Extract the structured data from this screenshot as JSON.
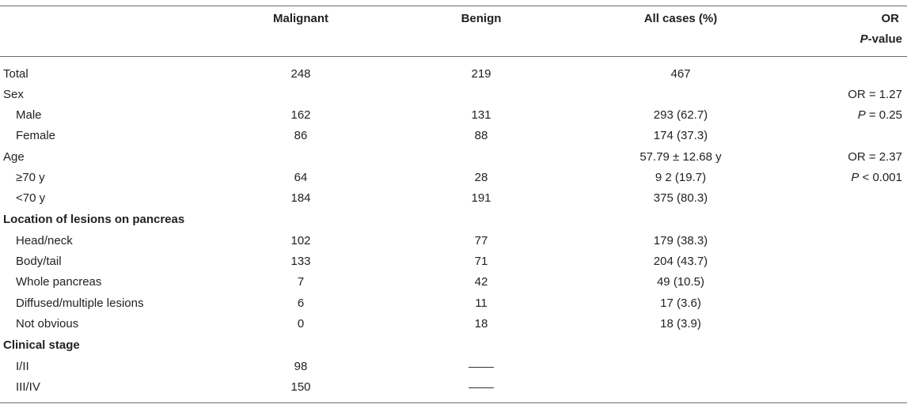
{
  "header": {
    "col_malignant": "Malignant",
    "col_benign": "Benign",
    "col_all": "All cases (%)",
    "col_or": "OR",
    "col_p_italic": "P",
    "col_p_rest": "-value"
  },
  "rows": {
    "total": {
      "label": "Total",
      "malignant": "248",
      "benign": "219",
      "all": "467",
      "or": ""
    },
    "sex": {
      "label": "Sex",
      "malignant": "",
      "benign": "",
      "all": "",
      "or": "OR = 1.27"
    },
    "male": {
      "label": "Male",
      "malignant": "162",
      "benign": "131",
      "all": "293 (62.7)",
      "or_p": "P",
      "or_rest": " = 0.25"
    },
    "female": {
      "label": "Female",
      "malignant": "86",
      "benign": "88",
      "all": "174 (37.3)",
      "or": ""
    },
    "age": {
      "label": "Age",
      "malignant": "",
      "benign": "",
      "all": "57.79 ± 12.68 y",
      "or": "OR = 2.37"
    },
    "age_ge70": {
      "label": "≥70 y",
      "malignant": "64",
      "benign": "28",
      "all": "9 2 (19.7)",
      "or_p": "P",
      "or_rest": " < 0.001"
    },
    "age_lt70": {
      "label": "<70 y",
      "malignant": "184",
      "benign": "191",
      "all": "375 (80.3)",
      "or": ""
    },
    "location": {
      "label": "Location of lesions on pancreas"
    },
    "head_neck": {
      "label": "Head/neck",
      "malignant": "102",
      "benign": "77",
      "all": "179 (38.3)"
    },
    "body_tail": {
      "label": "Body/tail",
      "malignant": "133",
      "benign": "71",
      "all": "204 (43.7)"
    },
    "whole": {
      "label": "Whole pancreas",
      "malignant": "7",
      "benign": "42",
      "all": "49 (10.5)"
    },
    "diffused": {
      "label": "Diffused/multiple lesions",
      "malignant": "6",
      "benign": "11",
      "all": "17 (3.6)"
    },
    "not_obvious": {
      "label": "Not obvious",
      "malignant": "0",
      "benign": "18",
      "all": "18 (3.9)"
    },
    "stage": {
      "label": "Clinical stage"
    },
    "stage_1_2": {
      "label": "I/II",
      "malignant": "98"
    },
    "stage_3_4": {
      "label": "III/IV",
      "malignant": "150"
    }
  }
}
